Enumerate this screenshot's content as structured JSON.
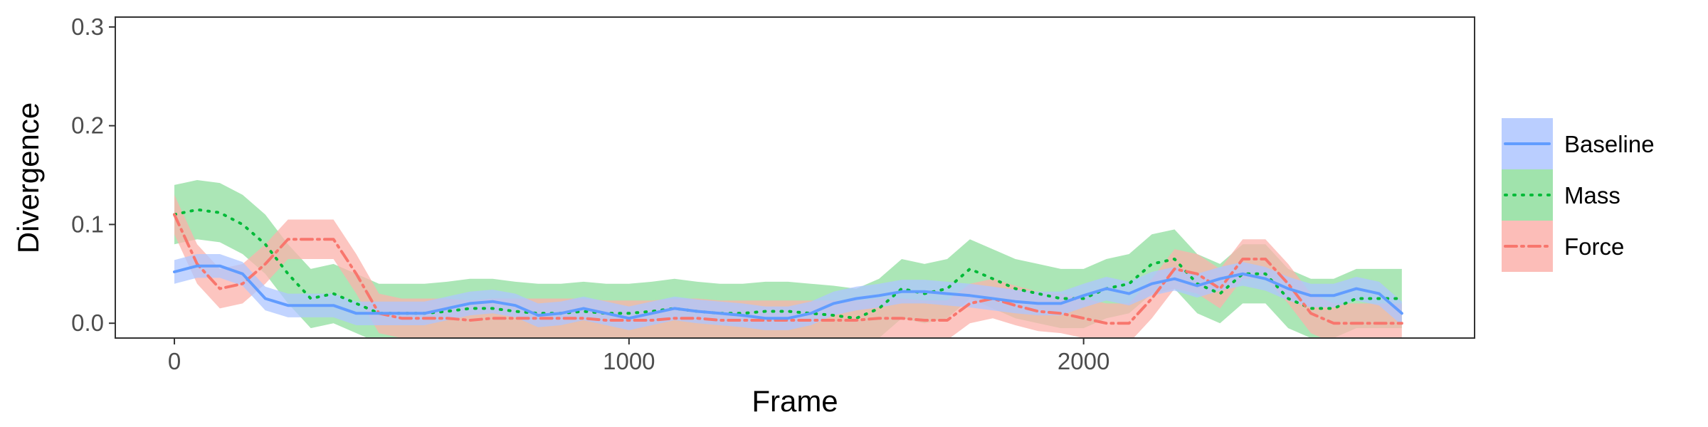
{
  "chart_data": {
    "type": "line",
    "title": "",
    "xlabel": "Frame",
    "ylabel": "Divergence",
    "xlim": [
      -130,
      2860
    ],
    "ylim": [
      -0.015,
      0.31
    ],
    "x_ticks": [
      0,
      1000,
      2000
    ],
    "x_tick_labels": [
      "0",
      "1000",
      "2000"
    ],
    "y_ticks": [
      0.0,
      0.1,
      0.2,
      0.3
    ],
    "y_tick_labels": [
      "0.0",
      "0.1",
      "0.2",
      "0.3"
    ],
    "grid": false,
    "legend_position": "right",
    "x": [
      0,
      50,
      100,
      150,
      200,
      250,
      300,
      350,
      400,
      450,
      500,
      550,
      600,
      650,
      700,
      750,
      800,
      850,
      900,
      950,
      1000,
      1050,
      1100,
      1150,
      1200,
      1250,
      1300,
      1350,
      1400,
      1450,
      1500,
      1550,
      1600,
      1650,
      1700,
      1750,
      1800,
      1850,
      1900,
      1950,
      2000,
      2050,
      2100,
      2150,
      2200,
      2250,
      2300,
      2350,
      2400,
      2450,
      2500,
      2550,
      2600,
      2650,
      2700
    ],
    "series": [
      {
        "name": "Baseline",
        "color": "#619CFF",
        "dash": "solid",
        "values": [
          0.052,
          0.058,
          0.058,
          0.05,
          0.025,
          0.018,
          0.018,
          0.018,
          0.01,
          0.01,
          0.01,
          0.01,
          0.015,
          0.02,
          0.022,
          0.018,
          0.008,
          0.01,
          0.015,
          0.01,
          0.005,
          0.01,
          0.015,
          0.012,
          0.01,
          0.008,
          0.005,
          0.005,
          0.01,
          0.02,
          0.025,
          0.028,
          0.032,
          0.032,
          0.03,
          0.028,
          0.025,
          0.022,
          0.02,
          0.02,
          0.028,
          0.035,
          0.03,
          0.04,
          0.045,
          0.038,
          0.045,
          0.05,
          0.045,
          0.035,
          0.028,
          0.028,
          0.035,
          0.03,
          0.01
        ],
        "band_width": 0.012
      },
      {
        "name": "Mass",
        "color": "#00BA38",
        "dash": "dotted",
        "values": [
          0.11,
          0.115,
          0.112,
          0.1,
          0.08,
          0.05,
          0.025,
          0.03,
          0.02,
          0.01,
          0.01,
          0.01,
          0.012,
          0.015,
          0.015,
          0.012,
          0.01,
          0.01,
          0.012,
          0.01,
          0.01,
          0.012,
          0.015,
          0.012,
          0.01,
          0.01,
          0.012,
          0.012,
          0.01,
          0.008,
          0.005,
          0.015,
          0.035,
          0.03,
          0.035,
          0.055,
          0.045,
          0.035,
          0.03,
          0.025,
          0.025,
          0.035,
          0.04,
          0.06,
          0.065,
          0.04,
          0.03,
          0.05,
          0.05,
          0.025,
          0.015,
          0.015,
          0.025,
          0.025,
          0.025
        ],
        "band_width": 0.03
      },
      {
        "name": "Force",
        "color": "#F8766D",
        "dash": "dashdot",
        "values": [
          0.11,
          0.06,
          0.035,
          0.04,
          0.06,
          0.085,
          0.085,
          0.085,
          0.05,
          0.01,
          0.005,
          0.005,
          0.005,
          0.003,
          0.005,
          0.005,
          0.005,
          0.005,
          0.005,
          0.003,
          0.003,
          0.003,
          0.005,
          0.005,
          0.003,
          0.003,
          0.003,
          0.003,
          0.003,
          0.003,
          0.003,
          0.005,
          0.005,
          0.003,
          0.003,
          0.02,
          0.025,
          0.018,
          0.012,
          0.01,
          0.005,
          0.0,
          0.0,
          0.025,
          0.055,
          0.05,
          0.035,
          0.065,
          0.065,
          0.04,
          0.01,
          0.0,
          0.0,
          0.0,
          0.0
        ],
        "band_width": 0.02
      }
    ]
  }
}
